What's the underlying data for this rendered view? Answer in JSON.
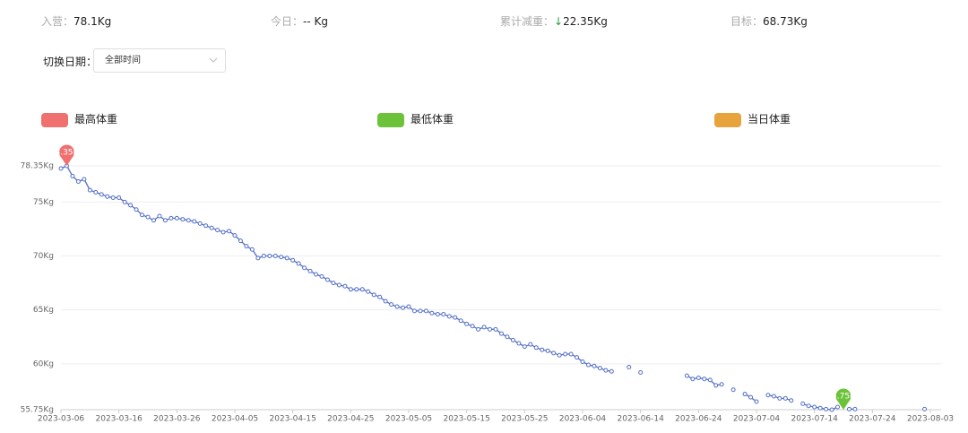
{
  "stats": [
    {
      "label": "入营：",
      "value": "78.1Kg"
    },
    {
      "label": "今日：",
      "value": "-- Kg"
    },
    {
      "label": "累计减重：",
      "arrow": "↓",
      "value": "22.35Kg"
    },
    {
      "label": "目标：",
      "value": "68.73Kg"
    }
  ],
  "date_filter": {
    "label": "切换日期：",
    "selected": "全部时间"
  },
  "chart_data": {
    "type": "line",
    "legend": [
      {
        "name": "最高体重",
        "color": "#f07070"
      },
      {
        "name": "最低体重",
        "color": "#6cc33a"
      },
      {
        "name": "当日体重",
        "color": "#e8a33d"
      }
    ],
    "x": [
      "2023-03-06",
      "2023-03-07",
      "2023-03-08",
      "2023-03-09",
      "2023-03-10",
      "2023-03-11",
      "2023-03-12",
      "2023-03-13",
      "2023-03-14",
      "2023-03-15",
      "2023-03-16",
      "2023-03-17",
      "2023-03-18",
      "2023-03-19",
      "2023-03-20",
      "2023-03-21",
      "2023-03-22",
      "2023-03-23",
      "2023-03-24",
      "2023-03-25",
      "2023-03-26",
      "2023-03-27",
      "2023-03-28",
      "2023-03-29",
      "2023-03-30",
      "2023-03-31",
      "2023-04-01",
      "2023-04-02",
      "2023-04-03",
      "2023-04-04",
      "2023-04-05",
      "2023-04-06",
      "2023-04-07",
      "2023-04-08",
      "2023-04-09",
      "2023-04-10",
      "2023-04-11",
      "2023-04-12",
      "2023-04-13",
      "2023-04-14",
      "2023-04-15",
      "2023-04-16",
      "2023-04-17",
      "2023-04-18",
      "2023-04-19",
      "2023-04-20",
      "2023-04-21",
      "2023-04-22",
      "2023-04-23",
      "2023-04-24",
      "2023-04-25",
      "2023-04-26",
      "2023-04-27",
      "2023-04-28",
      "2023-04-29",
      "2023-04-30",
      "2023-05-01",
      "2023-05-02",
      "2023-05-03",
      "2023-05-04",
      "2023-05-05",
      "2023-05-06",
      "2023-05-07",
      "2023-05-08",
      "2023-05-09",
      "2023-05-10",
      "2023-05-11",
      "2023-05-12",
      "2023-05-13",
      "2023-05-14",
      "2023-05-15",
      "2023-05-16",
      "2023-05-17",
      "2023-05-18",
      "2023-05-19",
      "2023-05-20",
      "2023-05-21",
      "2023-05-22",
      "2023-05-23",
      "2023-05-24",
      "2023-05-25",
      "2023-05-26",
      "2023-05-27",
      "2023-05-28",
      "2023-05-29",
      "2023-05-30",
      "2023-05-31",
      "2023-06-01",
      "2023-06-02",
      "2023-06-03",
      "2023-06-04",
      "2023-06-05",
      "2023-06-06",
      "2023-06-07",
      "2023-06-08",
      "2023-06-09",
      "2023-06-10",
      "2023-06-11",
      "2023-06-12",
      "2023-06-13",
      "2023-06-14",
      "2023-06-15",
      "2023-06-16",
      "2023-06-17",
      "2023-06-18",
      "2023-06-19",
      "2023-06-20",
      "2023-06-21",
      "2023-06-22",
      "2023-06-23",
      "2023-06-24",
      "2023-06-25",
      "2023-06-26",
      "2023-06-27",
      "2023-06-28",
      "2023-06-29",
      "2023-06-30",
      "2023-07-01",
      "2023-07-02",
      "2023-07-03",
      "2023-07-04",
      "2023-07-05",
      "2023-07-06",
      "2023-07-07",
      "2023-07-08",
      "2023-07-09",
      "2023-07-10",
      "2023-07-11",
      "2023-07-12",
      "2023-07-13",
      "2023-07-14",
      "2023-07-15",
      "2023-07-16",
      "2023-07-17",
      "2023-07-18",
      "2023-07-19",
      "2023-07-20",
      "2023-07-21",
      "2023-07-22",
      "2023-07-23",
      "2023-07-24",
      "2023-07-25",
      "2023-07-26",
      "2023-07-27",
      "2023-07-28",
      "2023-07-29",
      "2023-07-30",
      "2023-07-31",
      "2023-08-01",
      "2023-08-02"
    ],
    "series": [
      {
        "color": "#5470c6",
        "values": [
          78.1,
          78.35,
          77.4,
          76.9,
          77.1,
          76.1,
          75.9,
          75.7,
          75.5,
          75.4,
          75.4,
          75.0,
          74.7,
          74.3,
          73.8,
          73.6,
          73.3,
          73.7,
          73.3,
          73.5,
          73.5,
          73.4,
          73.3,
          73.2,
          73.0,
          72.8,
          72.6,
          72.4,
          72.2,
          72.3,
          71.9,
          71.4,
          70.9,
          70.6,
          69.8,
          70.0,
          70.0,
          70.0,
          69.9,
          69.8,
          69.6,
          69.3,
          68.9,
          68.6,
          68.3,
          68.1,
          67.8,
          67.5,
          67.3,
          67.2,
          66.9,
          66.9,
          66.9,
          66.7,
          66.4,
          66.2,
          65.8,
          65.5,
          65.3,
          65.2,
          65.3,
          64.9,
          64.9,
          64.9,
          64.7,
          64.6,
          64.6,
          64.4,
          64.3,
          64.0,
          63.7,
          63.5,
          63.2,
          63.4,
          63.2,
          63.2,
          62.8,
          62.5,
          62.2,
          61.9,
          61.6,
          61.8,
          61.5,
          61.3,
          61.2,
          61.0,
          60.8,
          60.9,
          60.9,
          60.6,
          60.2,
          59.9,
          59.8,
          59.6,
          59.4,
          59.3,
          null,
          null,
          59.7,
          null,
          59.2,
          null,
          null,
          null,
          null,
          null,
          null,
          null,
          58.9,
          58.6,
          58.7,
          58.6,
          58.5,
          58.0,
          58.1,
          null,
          57.6,
          null,
          57.2,
          56.9,
          56.5,
          null,
          57.1,
          57.0,
          56.8,
          56.8,
          56.6,
          null,
          56.3,
          56.1,
          56.0,
          55.9,
          55.8,
          55.75,
          56.0,
          null,
          55.8,
          55.8,
          null,
          null,
          null,
          null,
          null,
          null,
          null,
          null,
          null,
          null,
          null,
          55.8
        ]
      }
    ],
    "annotations": [
      {
        "x": "2023-03-07",
        "value": 78.35,
        "label": "78.35Kg",
        "color": "#f07070"
      },
      {
        "x": "2023-07-19",
        "value": 55.75,
        "label": "55.75Kg",
        "color": "#6cc33a"
      }
    ],
    "xlim": [
      "2023-03-06",
      "2023-08-03"
    ],
    "xticks": [
      "2023-03-06",
      "2023-03-16",
      "2023-03-26",
      "2023-04-05",
      "2023-04-15",
      "2023-04-25",
      "2023-05-05",
      "2023-05-15",
      "2023-05-25",
      "2023-06-04",
      "2023-06-14",
      "2023-06-24",
      "2023-07-04",
      "2023-07-14",
      "2023-07-24",
      "2023-08-03"
    ],
    "ylim": [
      55.75,
      78.35
    ],
    "yticks": [
      {
        "value": 55.75,
        "label": "55.75Kg"
      },
      {
        "value": 60,
        "label": "60Kg"
      },
      {
        "value": 65,
        "label": "65Kg"
      },
      {
        "value": 70,
        "label": "70Kg"
      },
      {
        "value": 75,
        "label": "75Kg"
      },
      {
        "value": 78.35,
        "label": "78.35Kg"
      }
    ],
    "grid": true
  }
}
